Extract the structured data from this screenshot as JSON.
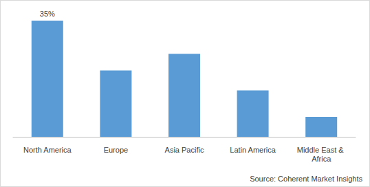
{
  "chart_data": {
    "type": "bar",
    "categories": [
      "North America",
      "Europe",
      "Asia Pacific",
      "Latin America",
      "Middle East & Africa"
    ],
    "values": [
      35,
      20,
      25,
      14,
      6
    ],
    "value_labels": [
      "35%",
      null,
      null,
      null,
      null
    ],
    "data_labels": true,
    "color": "#5b9bd5",
    "grid": false,
    "tick_labels": "x",
    "source": "Source: Coherent Market Insights"
  }
}
